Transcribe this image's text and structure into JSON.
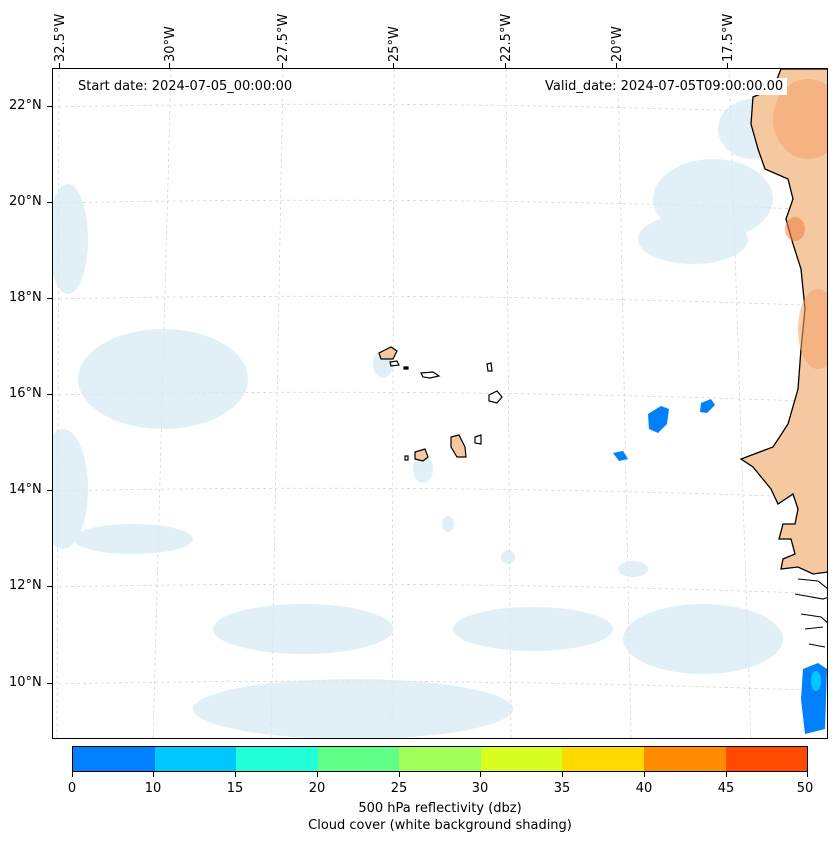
{
  "map": {
    "start_date": "Start date: 2024-07-05_00:00:00",
    "valid_date": "Valid_date: 2024-07-05T09:00:00.00",
    "longitude_labels": [
      "32.5°W",
      "30°W",
      "27.5°W",
      "25°W",
      "22.5°W",
      "20°W",
      "17.5°W"
    ],
    "latitude_labels": [
      "22°N",
      "20°N",
      "18°N",
      "16°N",
      "14°N",
      "12°N",
      "10°N"
    ]
  },
  "colorbar": {
    "title_line1": "500 hPa reflectivity (dbz)",
    "title_line2": "Cloud cover (white background shading)",
    "tick_labels": [
      "0",
      "10",
      "15",
      "20",
      "25",
      "30",
      "35",
      "40",
      "45",
      "50"
    ],
    "colors": [
      "#0080ff",
      "#00c8ff",
      "#20ffd8",
      "#60ff88",
      "#a0ff58",
      "#d8ff20",
      "#ffd800",
      "#ff8c00",
      "#ff4a00"
    ]
  },
  "colors": {
    "land_fill": "#f6c8a0",
    "cloud_fill": "#d6ebf3",
    "reflectivity_low": "#0080ff",
    "reflectivity_mid": "#00c8ff"
  }
}
